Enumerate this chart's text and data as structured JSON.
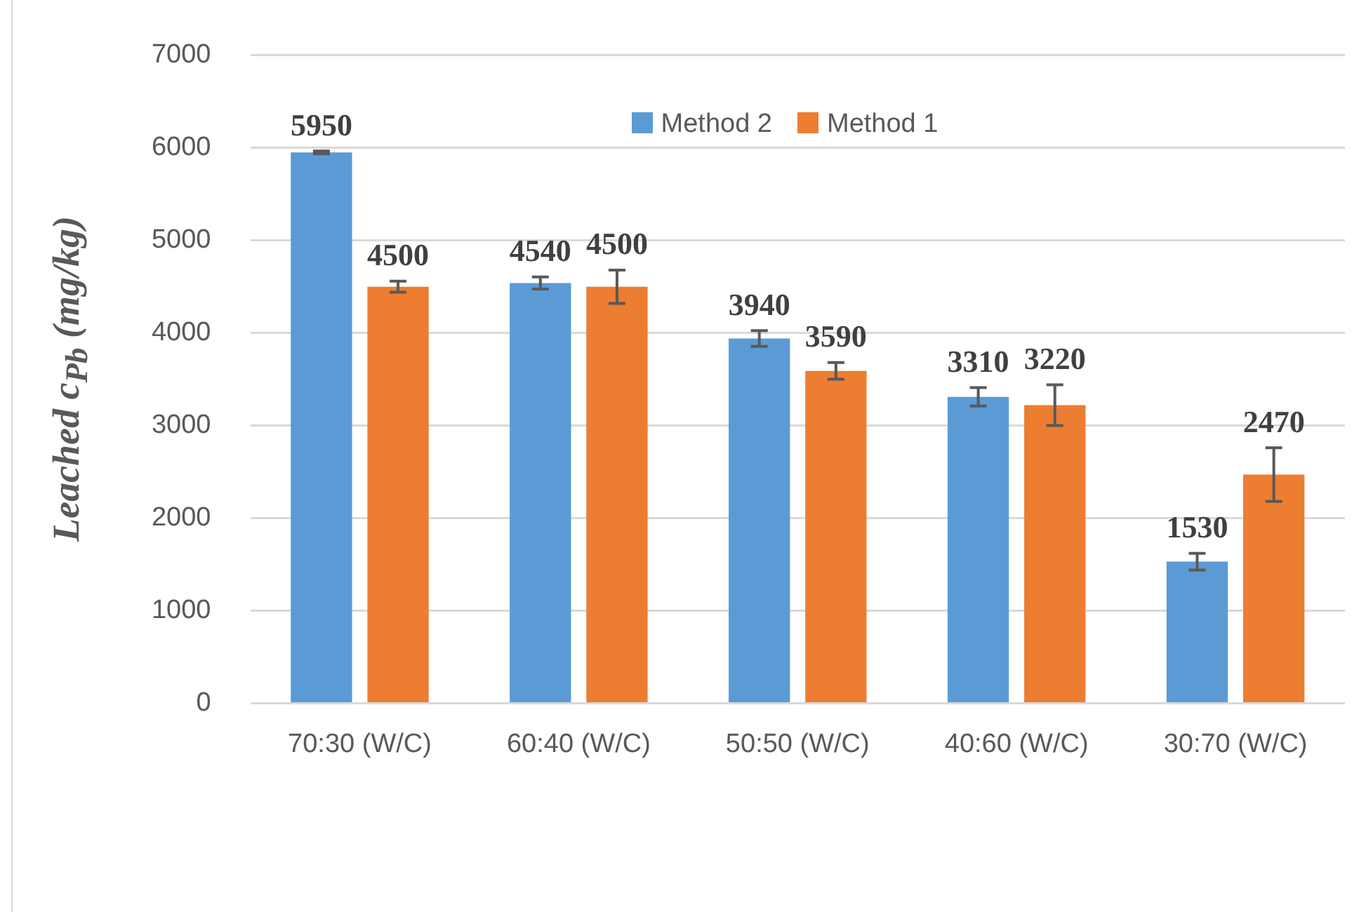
{
  "chart_data": {
    "type": "bar",
    "ylabel": "Leached c$_{Pb}$ (mg/kg)",
    "categories": [
      "70:30 (W/C)",
      "60:40 (W/C)",
      "50:50 (W/C)",
      "40:60 (W/C)",
      "30:70 (W/C)"
    ],
    "series": [
      {
        "name": "Method 2",
        "color": "#5b9bd5",
        "values": [
          5950,
          4540,
          3940,
          3310,
          1530
        ],
        "errors": [
          15,
          65,
          85,
          100,
          90
        ]
      },
      {
        "name": "Method 1",
        "color": "#ed7d31",
        "values": [
          4500,
          4500,
          3590,
          3220,
          2470
        ],
        "errors": [
          60,
          180,
          90,
          220,
          290
        ]
      }
    ],
    "ylim": [
      0,
      7000
    ],
    "yticks": [
      0,
      1000,
      2000,
      3000,
      4000,
      5000,
      6000,
      7000
    ],
    "grid": "y",
    "legend": "top",
    "data_labels": true
  }
}
